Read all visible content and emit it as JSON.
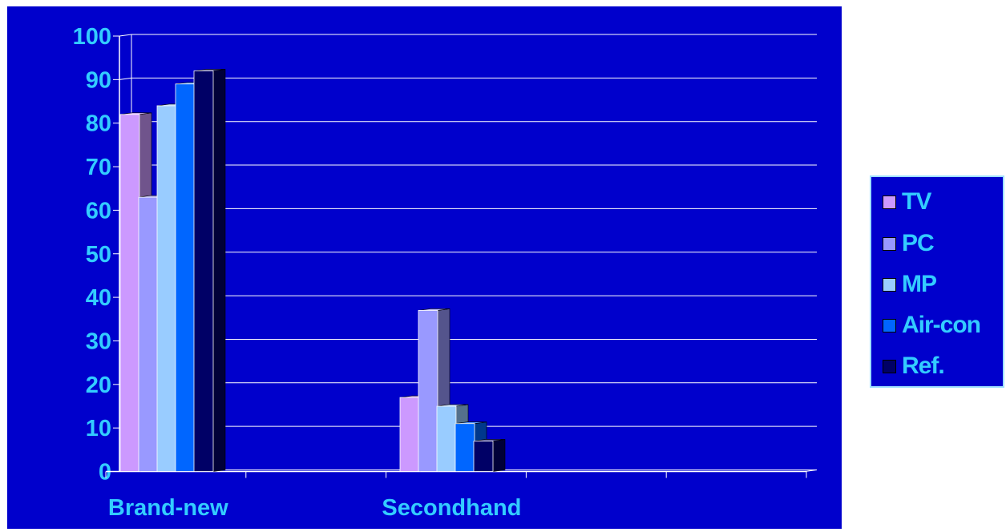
{
  "chart_data": {
    "type": "bar",
    "categories": [
      "Brand-new",
      "Secondhand"
    ],
    "series": [
      {
        "name": "TV",
        "values": [
          82,
          17
        ],
        "color": "#cc99ff"
      },
      {
        "name": "PC",
        "values": [
          63,
          37
        ],
        "color": "#9999ff"
      },
      {
        "name": "MP",
        "values": [
          84,
          15
        ],
        "color": "#99ccff"
      },
      {
        "name": "Air-con",
        "values": [
          89,
          11
        ],
        "color": "#0066ff"
      },
      {
        "name": "Ref.",
        "values": [
          92,
          7
        ],
        "color": "#000066"
      }
    ],
    "title": "",
    "xlabel": "",
    "ylabel": "",
    "ylim": [
      0,
      100
    ],
    "yticks": [
      "0",
      "10",
      "20",
      "30",
      "40",
      "50",
      "60",
      "70",
      "80",
      "90",
      "100"
    ],
    "grid": true,
    "legend_position": "right",
    "colors": {
      "plot_background": "#0000cc",
      "text": "#33ccff",
      "gridline": "#ffffff",
      "legend_border": "#9fe0ff"
    }
  }
}
